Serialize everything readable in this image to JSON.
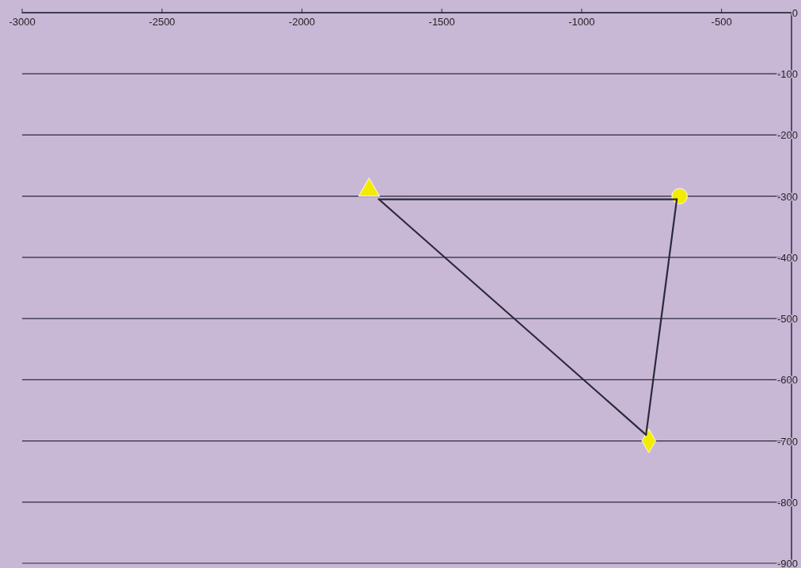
{
  "chart_data": {
    "type": "scatter",
    "xlim": [
      -3000,
      -250
    ],
    "ylim": [
      -900,
      0
    ],
    "xticks": [
      -3000,
      -2500,
      -2000,
      -1500,
      -1000,
      -500
    ],
    "yticks": [
      0,
      -100,
      -200,
      -300,
      -400,
      -500,
      -600,
      -700,
      -800,
      -900
    ],
    "grid": "y",
    "series": [
      {
        "type": "line",
        "color": "#2a2a3a",
        "marker": "none",
        "x": [
          -1725,
          -660
        ],
        "values": [
          -305,
          -305
        ]
      },
      {
        "type": "line",
        "color": "#2a2a3a",
        "marker": "none",
        "x": [
          -770,
          -660
        ],
        "values": [
          -690,
          -305
        ]
      },
      {
        "type": "line",
        "color": "#2a2a3a",
        "marker": "none",
        "x": [
          -1725,
          -770
        ],
        "values": [
          -305,
          -690
        ]
      },
      {
        "type": "scatter",
        "color": "#f2ec00",
        "marker": "triangle",
        "x": [
          -1760
        ],
        "values": [
          -290
        ]
      },
      {
        "type": "scatter",
        "color": "#f2ec00",
        "marker": "circle",
        "x": [
          -650
        ],
        "values": [
          -300
        ]
      },
      {
        "type": "scatter",
        "color": "#f2ec00",
        "marker": "diamond",
        "x": [
          -760
        ],
        "values": [
          -700
        ]
      }
    ]
  }
}
